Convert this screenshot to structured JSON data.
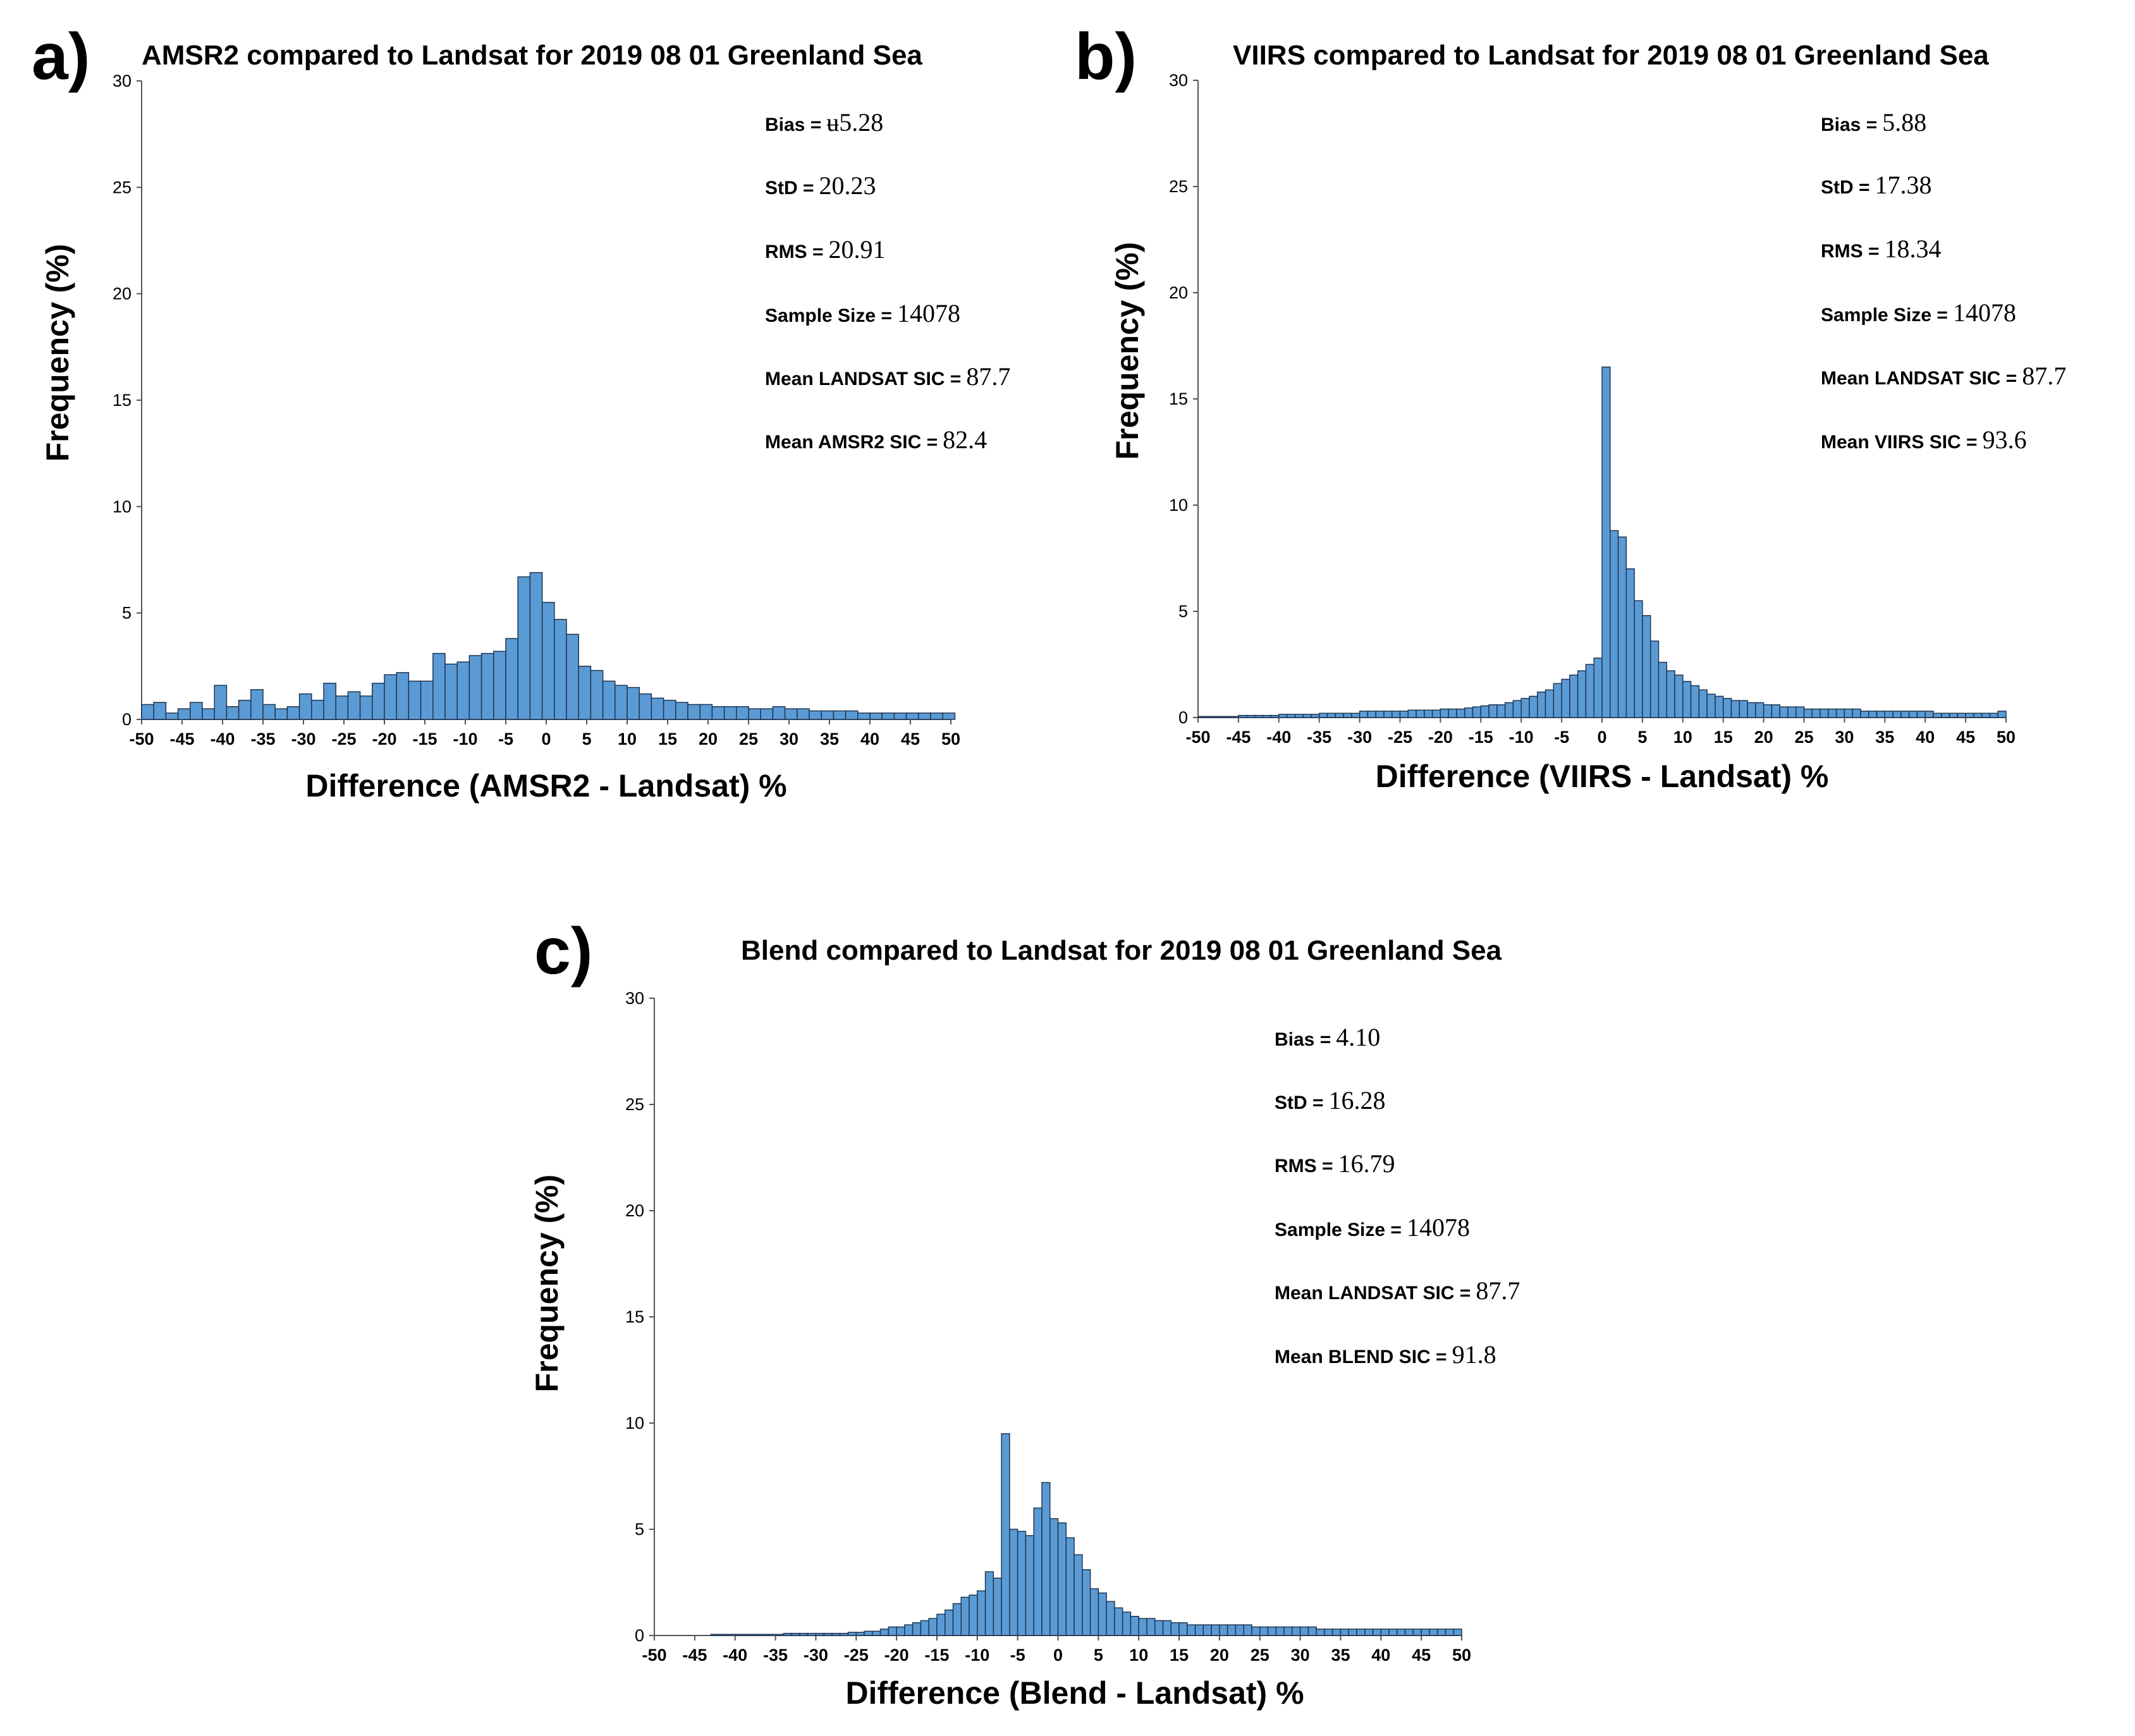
{
  "colors": {
    "bar": "#5b9bd5",
    "bar_edge": "#1f3550",
    "axis": "#555555"
  },
  "chart_data": [
    {
      "panel_label": "a)",
      "type": "bar",
      "title": "AMSR2 compared to Landsat for 2019 08 01 Greenland Sea",
      "xlabel": "Difference (AMSR2 - Landsat) %",
      "ylabel": "Frequency (%)",
      "xlim": [
        -50,
        50
      ],
      "ylim": [
        0,
        30
      ],
      "xticks": [
        "-50",
        "-45",
        "-40",
        "-35",
        "-30",
        "-25",
        "-20",
        "-15",
        "-10",
        "-5",
        "0",
        "5",
        "10",
        "15",
        "20",
        "25",
        "30",
        "35",
        "40",
        "45",
        "50"
      ],
      "yticks": [
        "0",
        "5",
        "10",
        "15",
        "20",
        "25",
        "30"
      ],
      "bin_width": 1.5,
      "x": [
        -49.25,
        -47.75,
        -46.25,
        -44.75,
        -43.25,
        -41.75,
        -40.25,
        -38.75,
        -37.25,
        -35.75,
        -34.25,
        -32.75,
        -31.25,
        -29.75,
        -28.25,
        -26.75,
        -25.25,
        -23.75,
        -22.25,
        -20.75,
        -19.25,
        -17.75,
        -16.25,
        -14.75,
        -13.25,
        -11.75,
        -10.25,
        -8.75,
        -7.25,
        -5.75,
        -4.25,
        -2.75,
        -1.25,
        0.25,
        1.75,
        3.25,
        4.75,
        6.25,
        7.75,
        9.25,
        10.75,
        12.25,
        13.75,
        15.25,
        16.75,
        18.25,
        19.75,
        21.25,
        22.75,
        24.25,
        25.75,
        27.25,
        28.75,
        30.25,
        31.75,
        33.25,
        34.75,
        36.25,
        37.75,
        39.25,
        40.75,
        42.25,
        43.75,
        45.25,
        46.75,
        48.25,
        49.75
      ],
      "values": [
        0.7,
        0.8,
        0.3,
        0.5,
        0.8,
        0.5,
        1.6,
        0.6,
        0.9,
        1.4,
        0.7,
        0.5,
        0.6,
        1.2,
        0.9,
        1.7,
        1.1,
        1.3,
        1.1,
        1.7,
        2.1,
        2.2,
        1.8,
        1.8,
        3.1,
        2.6,
        2.7,
        3.0,
        3.1,
        3.2,
        3.8,
        6.7,
        6.9,
        5.5,
        4.7,
        4.0,
        2.5,
        2.3,
        1.8,
        1.6,
        1.5,
        1.2,
        1.0,
        0.9,
        0.8,
        0.7,
        0.7,
        0.6,
        0.6,
        0.6,
        0.5,
        0.5,
        0.6,
        0.5,
        0.5,
        0.4,
        0.4,
        0.4,
        0.4,
        0.3,
        0.3,
        0.3,
        0.3,
        0.3,
        0.3,
        0.3,
        0.3
      ],
      "stats": [
        {
          "label": "Bias =",
          "value": "ʉ5.28"
        },
        {
          "label": "StD =",
          "value": "20.23"
        },
        {
          "label": "RMS =",
          "value": "20.91"
        },
        {
          "label": "Sample Size =",
          "value": "14078"
        },
        {
          "label": "Mean LANDSAT SIC =",
          "value": "87.7"
        },
        {
          "label": "Mean AMSR2 SIC =",
          "value": "82.4"
        }
      ]
    },
    {
      "panel_label": "b)",
      "type": "bar",
      "title": "VIIRS compared to Landsat for 2019 08 01 Greenland Sea",
      "xlabel": "Difference (VIIRS - Landsat) %",
      "ylabel": "Frequency (%)",
      "xlim": [
        -50,
        50
      ],
      "ylim": [
        0,
        30
      ],
      "xticks": [
        "-50",
        "-45",
        "-40",
        "-35",
        "-30",
        "-25",
        "-20",
        "-15",
        "-10",
        "-5",
        "0",
        "5",
        "10",
        "15",
        "20",
        "25",
        "30",
        "35",
        "40",
        "45",
        "50"
      ],
      "yticks": [
        "0",
        "5",
        "10",
        "15",
        "20",
        "25",
        "30"
      ],
      "bin_width": 1,
      "x": [
        -49.5,
        -48.5,
        -47.5,
        -46.5,
        -45.5,
        -44.5,
        -43.5,
        -42.5,
        -41.5,
        -40.5,
        -39.5,
        -38.5,
        -37.5,
        -36.5,
        -35.5,
        -34.5,
        -33.5,
        -32.5,
        -31.5,
        -30.5,
        -29.5,
        -28.5,
        -27.5,
        -26.5,
        -25.5,
        -24.5,
        -23.5,
        -22.5,
        -21.5,
        -20.5,
        -19.5,
        -18.5,
        -17.5,
        -16.5,
        -15.5,
        -14.5,
        -13.5,
        -12.5,
        -11.5,
        -10.5,
        -9.5,
        -8.5,
        -7.5,
        -6.5,
        -5.5,
        -4.5,
        -3.5,
        -2.5,
        -1.5,
        -0.5,
        0.5,
        1.5,
        2.5,
        3.5,
        4.5,
        5.5,
        6.5,
        7.5,
        8.5,
        9.5,
        10.5,
        11.5,
        12.5,
        13.5,
        14.5,
        15.5,
        16.5,
        17.5,
        18.5,
        19.5,
        20.5,
        21.5,
        22.5,
        23.5,
        24.5,
        25.5,
        26.5,
        27.5,
        28.5,
        29.5,
        30.5,
        31.5,
        32.5,
        33.5,
        34.5,
        35.5,
        36.5,
        37.5,
        38.5,
        39.5,
        40.5,
        41.5,
        42.5,
        43.5,
        44.5,
        45.5,
        46.5,
        47.5,
        48.5,
        49.5
      ],
      "values": [
        0.05,
        0.05,
        0.05,
        0.05,
        0.05,
        0.1,
        0.1,
        0.1,
        0.1,
        0.1,
        0.15,
        0.15,
        0.15,
        0.15,
        0.15,
        0.2,
        0.2,
        0.2,
        0.2,
        0.2,
        0.3,
        0.3,
        0.3,
        0.3,
        0.3,
        0.3,
        0.35,
        0.35,
        0.35,
        0.35,
        0.4,
        0.4,
        0.4,
        0.45,
        0.5,
        0.55,
        0.6,
        0.6,
        0.7,
        0.8,
        0.9,
        1.0,
        1.2,
        1.3,
        1.6,
        1.8,
        2.0,
        2.2,
        2.5,
        2.8,
        16.5,
        8.8,
        8.5,
        7.0,
        5.5,
        4.8,
        3.6,
        2.6,
        2.2,
        2.0,
        1.7,
        1.5,
        1.3,
        1.1,
        1.0,
        0.9,
        0.8,
        0.8,
        0.7,
        0.7,
        0.6,
        0.6,
        0.5,
        0.5,
        0.5,
        0.4,
        0.4,
        0.4,
        0.4,
        0.4,
        0.4,
        0.4,
        0.3,
        0.3,
        0.3,
        0.3,
        0.3,
        0.3,
        0.3,
        0.3,
        0.3,
        0.2,
        0.2,
        0.2,
        0.2,
        0.2,
        0.2,
        0.2,
        0.2,
        0.3
      ],
      "stats": [
        {
          "label": "Bias =",
          "value": "5.88"
        },
        {
          "label": "StD =",
          "value": "17.38"
        },
        {
          "label": "RMS =",
          "value": "18.34"
        },
        {
          "label": "Sample Size =",
          "value": "14078"
        },
        {
          "label": "Mean LANDSAT SIC =",
          "value": "87.7"
        },
        {
          "label": "Mean VIIRS SIC =",
          "value": "93.6"
        }
      ]
    },
    {
      "panel_label": "c)",
      "type": "bar",
      "title": "Blend compared to Landsat for 2019 08 01 Greenland Sea",
      "xlabel": "Difference (Blend - Landsat) %",
      "ylabel": "Frequency (%)",
      "xlim": [
        -50,
        50
      ],
      "ylim": [
        0,
        30
      ],
      "xticks": [
        "-50",
        "-45",
        "-40",
        "-35",
        "-30",
        "-25",
        "-20",
        "-15",
        "-10",
        "-5",
        "0",
        "5",
        "10",
        "15",
        "20",
        "25",
        "30",
        "35",
        "40",
        "45",
        "50"
      ],
      "yticks": [
        "0",
        "5",
        "10",
        "15",
        "20",
        "25",
        "30"
      ],
      "bin_width": 1,
      "x": [
        -49.5,
        -48.5,
        -47.5,
        -46.5,
        -45.5,
        -44.5,
        -43.5,
        -42.5,
        -41.5,
        -40.5,
        -39.5,
        -38.5,
        -37.5,
        -36.5,
        -35.5,
        -34.5,
        -33.5,
        -32.5,
        -31.5,
        -30.5,
        -29.5,
        -28.5,
        -27.5,
        -26.5,
        -25.5,
        -24.5,
        -23.5,
        -22.5,
        -21.5,
        -20.5,
        -19.5,
        -18.5,
        -17.5,
        -16.5,
        -15.5,
        -14.5,
        -13.5,
        -12.5,
        -11.5,
        -10.5,
        -9.5,
        -8.5,
        -7.5,
        -6.5,
        -5.5,
        -4.5,
        -3.5,
        -2.5,
        -1.5,
        -0.5,
        0.5,
        1.5,
        2.5,
        3.5,
        4.5,
        5.5,
        6.5,
        7.5,
        8.5,
        9.5,
        10.5,
        11.5,
        12.5,
        13.5,
        14.5,
        15.5,
        16.5,
        17.5,
        18.5,
        19.5,
        20.5,
        21.5,
        22.5,
        23.5,
        24.5,
        25.5,
        26.5,
        27.5,
        28.5,
        29.5,
        30.5,
        31.5,
        32.5,
        33.5,
        34.5,
        35.5,
        36.5,
        37.5,
        38.5,
        39.5,
        40.5,
        41.5,
        42.5,
        43.5,
        44.5,
        45.5,
        46.5,
        47.5,
        48.5,
        49.5
      ],
      "values": [
        0,
        0,
        0,
        0,
        0,
        0,
        0,
        0.05,
        0.05,
        0.05,
        0.05,
        0.05,
        0.05,
        0.05,
        0.05,
        0.05,
        0.1,
        0.1,
        0.1,
        0.1,
        0.1,
        0.1,
        0.1,
        0.1,
        0.15,
        0.15,
        0.2,
        0.2,
        0.3,
        0.4,
        0.4,
        0.5,
        0.6,
        0.7,
        0.8,
        1.0,
        1.2,
        1.5,
        1.8,
        1.9,
        2.1,
        3.0,
        2.7,
        9.5,
        5.0,
        4.9,
        4.7,
        6.0,
        7.2,
        5.5,
        5.3,
        4.6,
        3.8,
        3.1,
        2.2,
        2.0,
        1.6,
        1.3,
        1.1,
        0.9,
        0.8,
        0.8,
        0.7,
        0.7,
        0.6,
        0.6,
        0.5,
        0.5,
        0.5,
        0.5,
        0.5,
        0.5,
        0.5,
        0.5,
        0.4,
        0.4,
        0.4,
        0.4,
        0.4,
        0.4,
        0.4,
        0.4,
        0.3,
        0.3,
        0.3,
        0.3,
        0.3,
        0.3,
        0.3,
        0.3,
        0.3,
        0.3,
        0.3,
        0.3,
        0.3,
        0.3,
        0.3,
        0.3,
        0.3,
        0.3
      ],
      "stats": [
        {
          "label": "Bias =",
          "value": "4.10"
        },
        {
          "label": "StD =",
          "value": "16.28"
        },
        {
          "label": "RMS =",
          "value": "16.79"
        },
        {
          "label": "Sample Size =",
          "value": "14078"
        },
        {
          "label": "Mean LANDSAT SIC =",
          "value": "87.7"
        },
        {
          "label": "Mean BLEND SIC =",
          "value": "91.8"
        }
      ]
    }
  ]
}
